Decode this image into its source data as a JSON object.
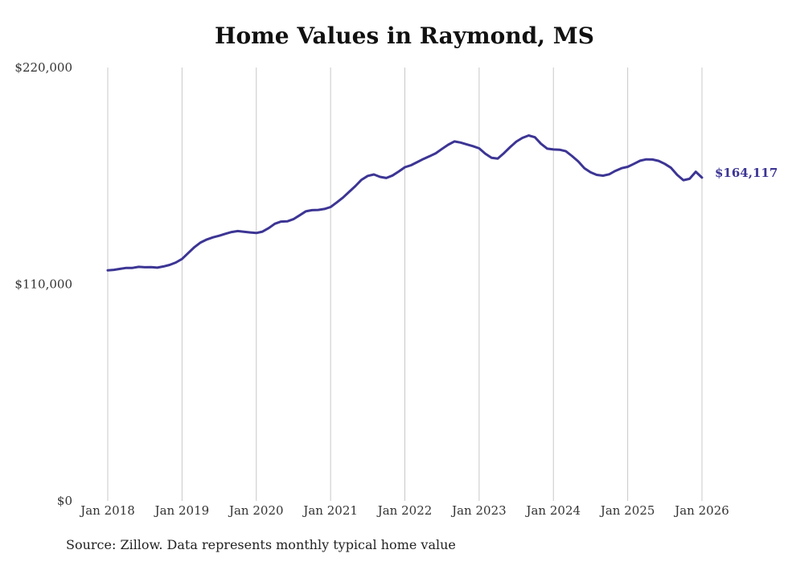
{
  "chart_data": {
    "type": "line",
    "title": "Home Values in Raymond, MS",
    "source": "Source: Zillow. Data represents monthly typical home value",
    "xlabel": "",
    "ylabel": "",
    "ylim": [
      0,
      220000
    ],
    "y_ticks": [
      {
        "value": 0,
        "label": "$0"
      },
      {
        "value": 110000,
        "label": "$110,000"
      },
      {
        "value": 220000,
        "label": "$220,000"
      }
    ],
    "x_ticks": [
      {
        "value": 2018,
        "label": "Jan 2018"
      },
      {
        "value": 2019,
        "label": "Jan 2019"
      },
      {
        "value": 2020,
        "label": "Jan 2020"
      },
      {
        "value": 2021,
        "label": "Jan 2021"
      },
      {
        "value": 2022,
        "label": "Jan 2022"
      },
      {
        "value": 2023,
        "label": "Jan 2023"
      },
      {
        "value": 2024,
        "label": "Jan 2024"
      },
      {
        "value": 2025,
        "label": "Jan 2025"
      },
      {
        "value": 2026,
        "label": "Jan 2026"
      }
    ],
    "xlim": [
      2018,
      2026
    ],
    "grid": "vertical",
    "line_color": "#3c3594",
    "end_label": "$164,117",
    "series": [
      {
        "name": "Typical home value",
        "x": [
          2018.0,
          2018.083,
          2018.167,
          2018.25,
          2018.333,
          2018.417,
          2018.5,
          2018.583,
          2018.667,
          2018.75,
          2018.833,
          2018.917,
          2019.0,
          2019.083,
          2019.167,
          2019.25,
          2019.333,
          2019.417,
          2019.5,
          2019.583,
          2019.667,
          2019.75,
          2019.833,
          2019.917,
          2020.0,
          2020.083,
          2020.167,
          2020.25,
          2020.333,
          2020.417,
          2020.5,
          2020.583,
          2020.667,
          2020.75,
          2020.833,
          2020.917,
          2021.0,
          2021.083,
          2021.167,
          2021.25,
          2021.333,
          2021.417,
          2021.5,
          2021.583,
          2021.667,
          2021.75,
          2021.833,
          2021.917,
          2022.0,
          2022.083,
          2022.167,
          2022.25,
          2022.333,
          2022.417,
          2022.5,
          2022.583,
          2022.667,
          2022.75,
          2022.833,
          2022.917,
          2023.0,
          2023.083,
          2023.167,
          2023.25,
          2023.333,
          2023.417,
          2023.5,
          2023.583,
          2023.667,
          2023.75,
          2023.833,
          2023.917,
          2024.0,
          2024.083,
          2024.167,
          2024.25,
          2024.333,
          2024.417,
          2024.5,
          2024.583,
          2024.667,
          2024.75,
          2024.833,
          2024.917,
          2025.0,
          2025.083,
          2025.167,
          2025.25,
          2025.333,
          2025.417,
          2025.5,
          2025.583,
          2025.667,
          2025.75,
          2025.833,
          2025.917,
          2026.0
        ],
        "values": [
          117000,
          117300,
          117800,
          118300,
          118300,
          118800,
          118600,
          118700,
          118400,
          119000,
          119800,
          121000,
          122800,
          125800,
          128800,
          131200,
          132700,
          133800,
          134600,
          135600,
          136500,
          137000,
          136600,
          136300,
          136000,
          136700,
          138500,
          140700,
          141800,
          141900,
          143000,
          145000,
          147000,
          147600,
          147700,
          148200,
          149200,
          151500,
          154000,
          156900,
          159800,
          163000,
          165000,
          165700,
          164500,
          163900,
          165200,
          167200,
          169400,
          170400,
          172000,
          173600,
          175000,
          176500,
          178700,
          180800,
          182500,
          181900,
          181000,
          180100,
          179000,
          176300,
          174200,
          173800,
          176500,
          179600,
          182400,
          184300,
          185500,
          184600,
          181300,
          178800,
          178400,
          178300,
          177500,
          175100,
          172400,
          168900,
          166800,
          165500,
          165100,
          165800,
          167500,
          168900,
          169600,
          171100,
          172700,
          173400,
          173300,
          172600,
          171100,
          169100,
          165500,
          162800,
          163500,
          167100,
          164117
        ]
      }
    ]
  }
}
